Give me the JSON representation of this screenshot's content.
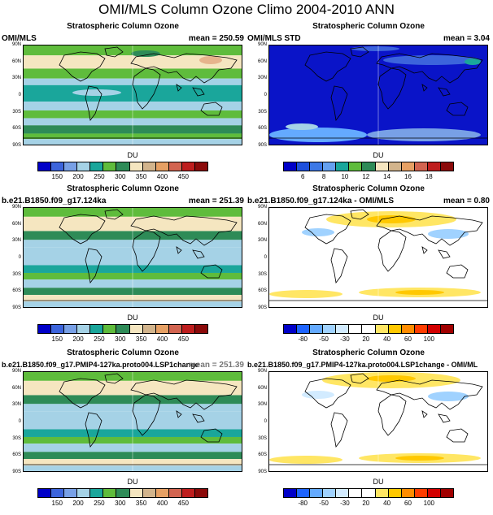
{
  "title": "OMI/MLS Column Ozone Climo 2004-2010 ANN",
  "lat_labels": [
    "90N",
    "60N",
    "30N",
    "0",
    "30S",
    "60S",
    "90S"
  ],
  "colors": {
    "ozone": [
      "#0000c8",
      "#3c64dc",
      "#78a0e6",
      "#a5d2e6",
      "#1aa69b",
      "#5fbc3c",
      "#2e8b57",
      "#f5e6c0",
      "#d2b48c",
      "#e6a064",
      "#d26450",
      "#be1e1e",
      "#8b0a0a"
    ],
    "diff": [
      "#0000c8",
      "#1e64ff",
      "#64aaff",
      "#a0d2ff",
      "#d2ebff",
      "#ffffff",
      "#ffffff",
      "#ffe664",
      "#ffc800",
      "#ff8c00",
      "#ff3c00",
      "#d20000",
      "#a00000"
    ]
  },
  "panels": [
    {
      "title": "Stratospheric Column Ozone",
      "left": "OMI/MLS",
      "right": "mean = 250.59",
      "unit": "DU",
      "colorbar": "ozone",
      "ticks": [
        "150",
        "200",
        "250",
        "300",
        "350",
        "400",
        "450"
      ]
    },
    {
      "title": "Stratospheric Column Ozone",
      "left": "OMI/MLS STD",
      "right": "mean =   3.04",
      "unit": "DU",
      "colorbar": "std",
      "ticks": [
        "6",
        "8",
        "10",
        "12",
        "14",
        "16",
        "18"
      ]
    },
    {
      "title": "Stratospheric Column Ozone",
      "left": "b.e21.B1850.f09_g17.124ka",
      "right": "mean = 251.39",
      "unit": "DU",
      "colorbar": "ozone",
      "ticks": [
        "150",
        "200",
        "250",
        "300",
        "350",
        "400",
        "450"
      ]
    },
    {
      "title": "Stratospheric Column Ozone",
      "left": "b.e21.B1850.f09_g17.124ka - OMI/MLS",
      "right": "mean =   0.80",
      "unit": "DU",
      "colorbar": "diff",
      "ticks": [
        "-80",
        "-50",
        "-30",
        "20",
        "40",
        "60",
        "100"
      ]
    },
    {
      "title": "Stratospheric Column Ozone",
      "left": "b.e21.B1850.f09_g17.PMIP4-127ka.proto004.LSP1change",
      "right": "mean = 251.39",
      "unit": "DU",
      "colorbar": "ozone",
      "ticks": [
        "150",
        "200",
        "250",
        "300",
        "350",
        "400",
        "450"
      ]
    },
    {
      "title": "Stratospheric Column Ozone",
      "left": "b.e21.B1850.f09_g17.PMIP4-127ka.proto004.LSP1change - OMI/ML",
      "right": "",
      "unit": "DU",
      "colorbar": "diff",
      "ticks": [
        "-80",
        "-50",
        "-30",
        "20",
        "40",
        "60",
        "100"
      ]
    }
  ],
  "chart_data": {
    "type": "heatmap",
    "title": "OMI/MLS Column Ozone Climo 2004-2010 ANN",
    "xlabel": "",
    "ylabel": "",
    "colorbar_label": "DU",
    "ylim": [
      "90S",
      "90N"
    ],
    "panels": [
      {
        "name": "OMI/MLS",
        "mean": 250.59
      },
      {
        "name": "OMI/MLS STD",
        "mean": 3.04
      },
      {
        "name": "b.e21.B1850.f09_g17.124ka",
        "mean": 251.39
      },
      {
        "name": "b.e21.B1850.f09_g17.124ka - OMI/MLS",
        "mean": 0.8
      },
      {
        "name": "b.e21.B1850.f09_g17.PMIP4-127ka.proto004.LSP1change"
      },
      {
        "name": "b.e21.B1850.f09_g17.PMIP4-127ka.proto004.LSP1change - OMI/ML"
      }
    ]
  }
}
